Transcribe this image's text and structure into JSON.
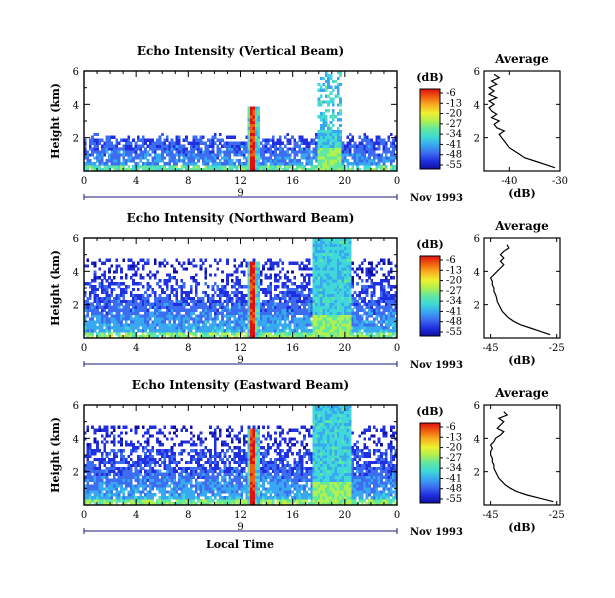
{
  "figure": {
    "xlabel": "Local Time",
    "colorbar_unit": "(dB)",
    "colorbar_ticks": [
      "-6",
      "-13",
      "-20",
      "-27",
      "-34",
      "-41",
      "-48",
      "-55"
    ],
    "date_label": "Nov 1993",
    "day_marker": "9",
    "colors": {
      "scale": [
        "#1010a0",
        "#2030e0",
        "#3c6cf0",
        "#38a8f0",
        "#40d8d8",
        "#60e8a0",
        "#b0f050",
        "#f0f030",
        "#f8b020",
        "#f06010",
        "#e01010"
      ]
    }
  },
  "chart_data": [
    {
      "type": "heatmap",
      "title": "Echo Intensity (Vertical Beam)",
      "ylabel": "Height (km)",
      "x_ticks": [
        "0",
        "4",
        "8",
        "12",
        "16",
        "20",
        "0"
      ],
      "y_ticks": [
        "2",
        "4",
        "6"
      ],
      "xlim": [
        0,
        24
      ],
      "ylim": [
        0,
        6
      ],
      "clim": [
        -55,
        -6
      ],
      "profile": {
        "title": "Average",
        "xlabel": "(dB)",
        "x_ticks": [
          "-40",
          "-30"
        ],
        "xlim": [
          -45,
          -30
        ],
        "y_ticks": [
          "2",
          "4",
          "6"
        ],
        "height_km": [
          0.2,
          0.4,
          0.6,
          0.8,
          1.0,
          1.2,
          1.4,
          1.6,
          1.8,
          2.0,
          2.2,
          2.4,
          2.6,
          2.8,
          3.0,
          3.2,
          3.4,
          3.6,
          3.8,
          4.0,
          4.2,
          4.4,
          4.6,
          4.8,
          5.0,
          5.2,
          5.4,
          5.6,
          5.8
        ],
        "intensity_db": [
          -31,
          -33,
          -35,
          -37,
          -38,
          -39,
          -40,
          -40.5,
          -41,
          -41.5,
          -42,
          -41,
          -42.5,
          -43,
          -42,
          -43.5,
          -42.5,
          -43.5,
          -44,
          -43,
          -44,
          -42.5,
          -44,
          -43,
          -44,
          -42.5,
          -43.5,
          -42,
          -43
        ]
      }
    },
    {
      "type": "heatmap",
      "title": "Echo Intensity (Northward Beam)",
      "ylabel": "Height (km)",
      "x_ticks": [
        "0",
        "4",
        "8",
        "12",
        "16",
        "20",
        "0"
      ],
      "y_ticks": [
        "2",
        "4",
        "6"
      ],
      "xlim": [
        0,
        24
      ],
      "ylim": [
        0,
        6
      ],
      "clim": [
        -55,
        -6
      ],
      "profile": {
        "title": "Average",
        "xlabel": "(dB)",
        "x_ticks": [
          "-45",
          "-25"
        ],
        "xlim": [
          -47,
          -24
        ],
        "y_ticks": [
          "2",
          "4",
          "6"
        ],
        "height_km": [
          0.2,
          0.4,
          0.6,
          0.8,
          1.0,
          1.2,
          1.4,
          1.6,
          1.8,
          2.0,
          2.2,
          2.4,
          2.6,
          2.8,
          3.0,
          3.2,
          3.4,
          3.6,
          3.8,
          4.0,
          4.2,
          4.4,
          4.6,
          4.8,
          5.0,
          5.2,
          5.4,
          5.6
        ],
        "intensity_db": [
          -27,
          -30,
          -33,
          -36,
          -38,
          -39.5,
          -40.5,
          -41.5,
          -42,
          -42.5,
          -43,
          -43.2,
          -43.5,
          -44,
          -44,
          -44.5,
          -44.5,
          -45,
          -44,
          -43,
          -42,
          -41,
          -42,
          -41,
          -42,
          -41,
          -39.5,
          -40
        ]
      }
    },
    {
      "type": "heatmap",
      "title": "Echo Intensity (Eastward Beam)",
      "ylabel": "Height (km)",
      "x_ticks": [
        "0",
        "4",
        "8",
        "12",
        "16",
        "20",
        "0"
      ],
      "y_ticks": [
        "2",
        "4",
        "6"
      ],
      "xlim": [
        0,
        24
      ],
      "ylim": [
        0,
        6
      ],
      "clim": [
        -55,
        -6
      ],
      "profile": {
        "title": "Average",
        "xlabel": "(dB)",
        "x_ticks": [
          "-45",
          "-25"
        ],
        "xlim": [
          -47,
          -24
        ],
        "y_ticks": [
          "2",
          "4",
          "6"
        ],
        "height_km": [
          0.2,
          0.4,
          0.6,
          0.8,
          1.0,
          1.2,
          1.4,
          1.6,
          1.8,
          2.0,
          2.2,
          2.4,
          2.6,
          2.8,
          3.0,
          3.2,
          3.4,
          3.6,
          3.8,
          4.0,
          4.2,
          4.4,
          4.6,
          4.8,
          5.0,
          5.2,
          5.4,
          5.6
        ],
        "intensity_db": [
          -26,
          -30,
          -34,
          -37,
          -39,
          -40.5,
          -41.5,
          -42.5,
          -43,
          -43.5,
          -44,
          -44,
          -44.5,
          -44.5,
          -45,
          -45,
          -44.5,
          -45,
          -44,
          -43.5,
          -42,
          -41,
          -43,
          -42,
          -41,
          -42.5,
          -40,
          -41
        ]
      }
    }
  ]
}
